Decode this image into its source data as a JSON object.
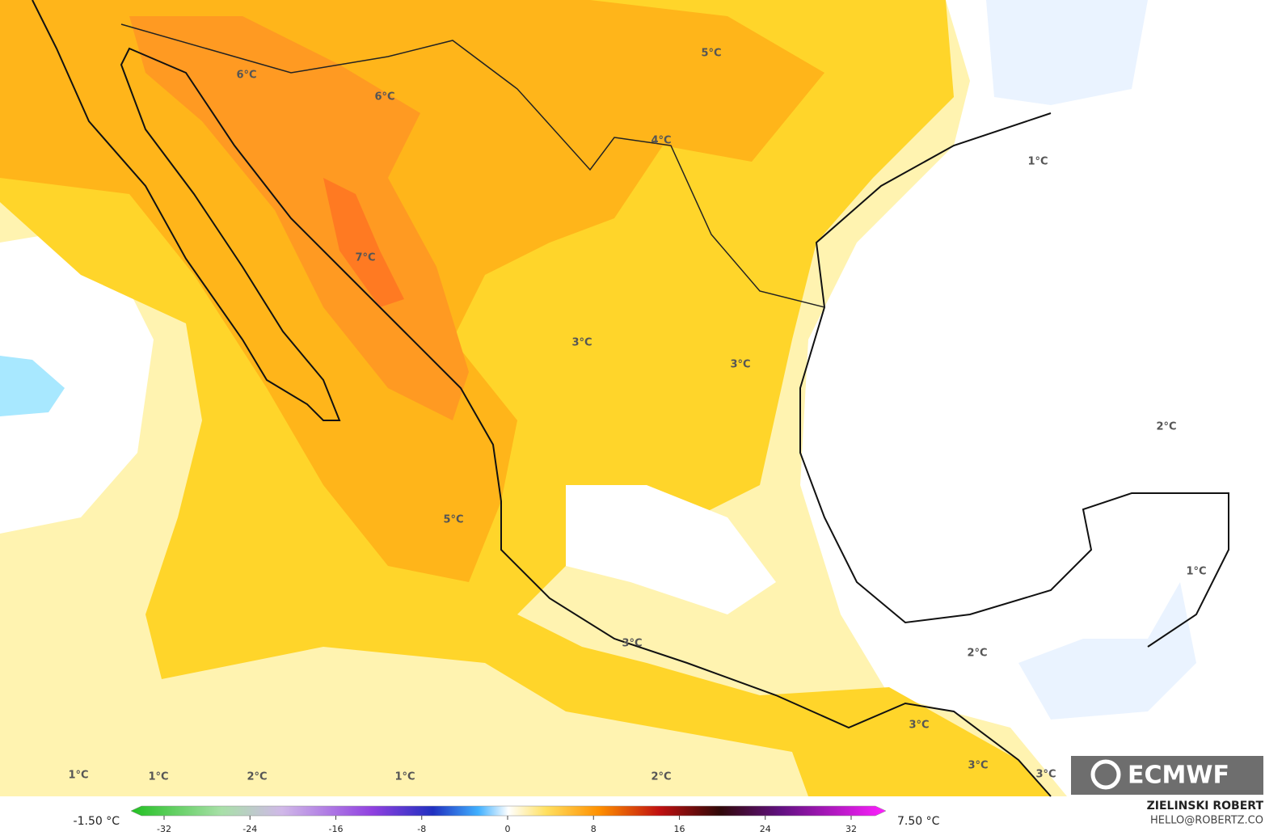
{
  "map": {
    "contour_labels": [
      "6°C",
      "6°C",
      "5°C",
      "4°C",
      "7°C",
      "3°C",
      "3°C",
      "1°C",
      "2°C",
      "5°C",
      "3°C",
      "2°C",
      "1°C",
      "3°C",
      "3°C",
      "3°C",
      "1°C",
      "1°C",
      "2°C",
      "1°C",
      "2°C"
    ],
    "logo": "ECMWF"
  },
  "colorbar": {
    "min_label": "-1.50 °C",
    "max_label": "7.50 °C",
    "lim": [
      -32,
      32
    ],
    "ticks": [
      -32,
      -24,
      -16,
      -8,
      0,
      8,
      16,
      24,
      32
    ]
  },
  "credits": {
    "author": "ZIELINSKI ROBERT",
    "contact": "HELLO@ROBERTZ.CO"
  }
}
